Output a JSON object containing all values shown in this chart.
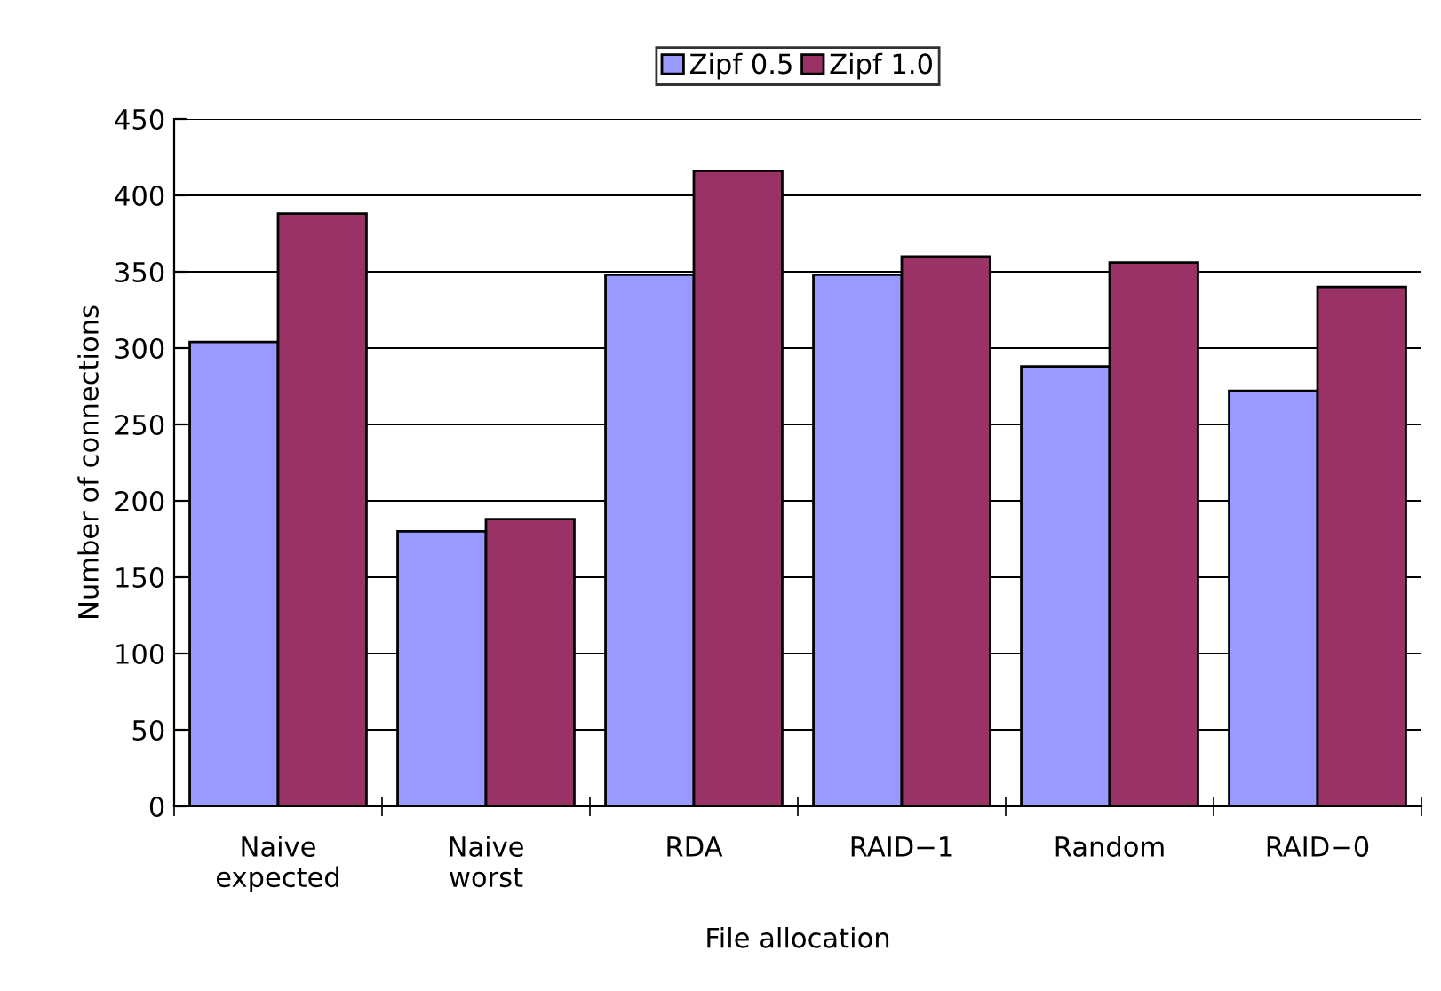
{
  "chart_data": {
    "type": "bar",
    "xlabel": "File allocation",
    "ylabel": "Number of connections",
    "categories": [
      "Naive\nexpected",
      "Naive\nworst",
      "RDA",
      "RAID−1",
      "Random",
      "RAID−0"
    ],
    "series": [
      {
        "name": "Zipf 0.5",
        "color": "#9999ff",
        "values": [
          304,
          180,
          348,
          348,
          288,
          272
        ]
      },
      {
        "name": "Zipf 1.0",
        "color": "#993366",
        "values": [
          388,
          188,
          416,
          360,
          356,
          340
        ]
      }
    ],
    "ylim": [
      0,
      450
    ],
    "yticks": [
      0,
      50,
      100,
      150,
      200,
      250,
      300,
      350,
      400,
      450
    ],
    "grid": "y",
    "legend": "top"
  }
}
